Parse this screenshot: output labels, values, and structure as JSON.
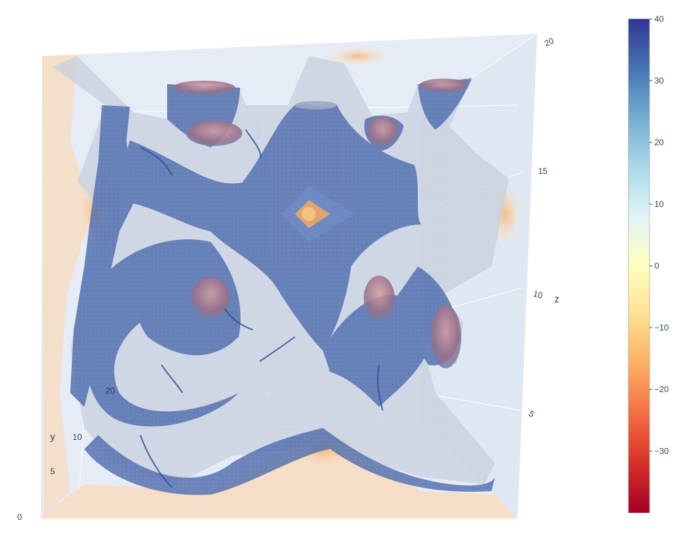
{
  "chart_data": {
    "type": "isosurface",
    "axes": {
      "x": {
        "label": "",
        "range": [
          0,
          20
        ]
      },
      "y": {
        "label": "y",
        "range": [
          0,
          20
        ],
        "ticks": [
          0,
          5,
          10,
          20
        ]
      },
      "z": {
        "label": "z",
        "range": [
          0,
          20
        ],
        "ticks": [
          5,
          10,
          15,
          20
        ]
      }
    },
    "colorbar": {
      "colorscale": "RdYlBu",
      "range": [
        -40,
        40
      ],
      "ticks": [
        40,
        30,
        20,
        10,
        0,
        -10,
        -20,
        -30
      ],
      "tick_labels": [
        "40",
        "30",
        "20",
        "10",
        "0",
        "−10",
        "−20",
        "−30"
      ]
    },
    "grid": true,
    "opacity": 0.6,
    "colors": {
      "scene_bg": "#e5ecf6",
      "surface_fill": "#4a6cb0",
      "surface_highlight": "#a9c4e6",
      "hot_core": "#f4a45e",
      "warm_edge": "#f6dcc0"
    }
  }
}
